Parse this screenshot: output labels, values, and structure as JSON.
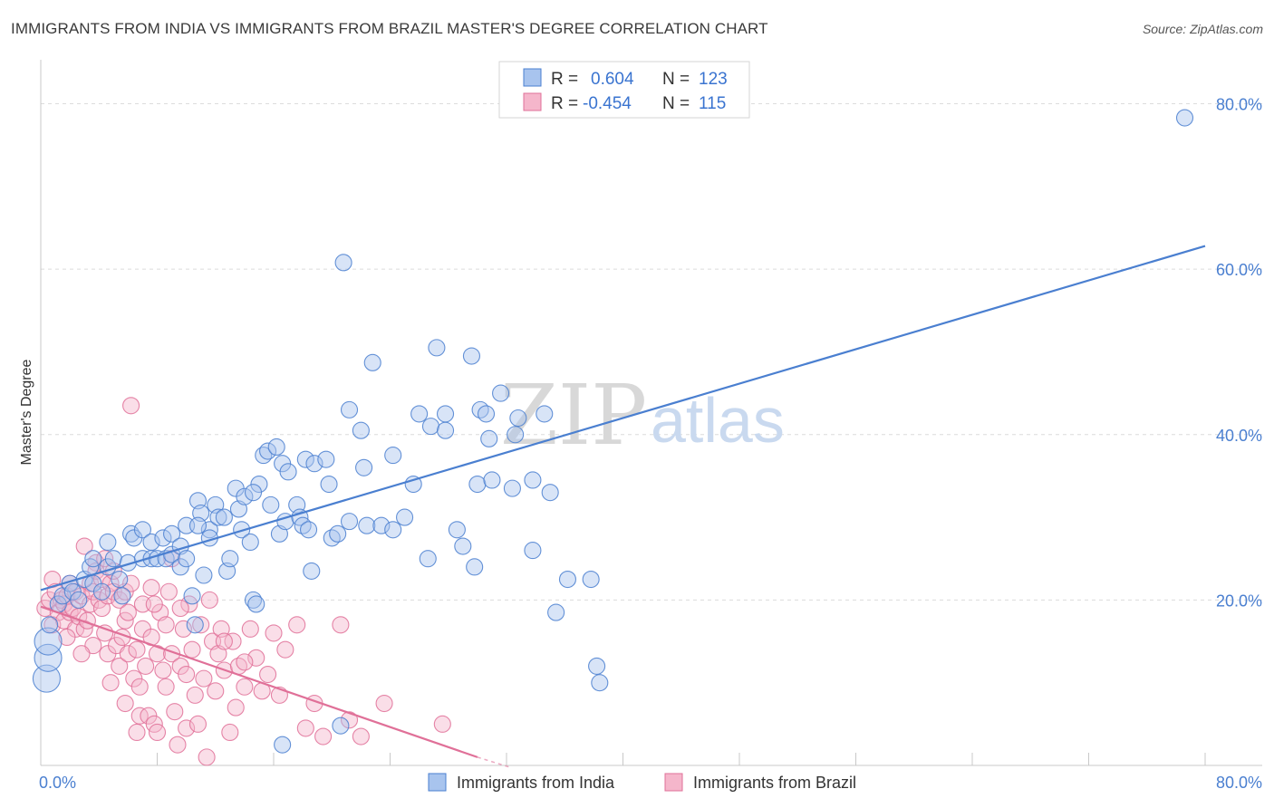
{
  "title": "IMMIGRANTS FROM INDIA VS IMMIGRANTS FROM BRAZIL MASTER'S DEGREE CORRELATION CHART",
  "source": "Source: ZipAtlas.com",
  "watermark": {
    "zip": "ZIP",
    "atlas": "atlas"
  },
  "colors": {
    "india": "#4a7fd0",
    "india_fill": "#a8c4ee",
    "brazil": "#e07098",
    "brazil_fill": "#f5b6cb"
  },
  "legend": {
    "rows": [
      {
        "r_label": "R =",
        "r_value": "0.604",
        "n_label": "N =",
        "n_value": "123"
      },
      {
        "r_label": "R =",
        "r_value": "-0.454",
        "n_label": "N =",
        "n_value": "115"
      }
    ]
  },
  "chart_data": {
    "type": "scatter",
    "xlabel": "",
    "ylabel": "Master's Degree",
    "xlim": [
      0,
      80
    ],
    "ylim": [
      0,
      84
    ],
    "x_tick_labels": [
      "0.0%",
      "80.0%"
    ],
    "y_ticks": [
      {
        "value": 20,
        "label": "20.0%"
      },
      {
        "value": 40,
        "label": "40.0%"
      },
      {
        "value": 60,
        "label": "60.0%"
      },
      {
        "value": 80,
        "label": "80.0%"
      }
    ],
    "grid": true,
    "legend_position": "top-center",
    "series": [
      {
        "name": "Immigrants from India",
        "trend": {
          "x0": 0,
          "y0": 21.2,
          "x1": 80,
          "y1": 62.8
        },
        "points": [
          [
            0.4,
            10.5
          ],
          [
            0.5,
            13.0
          ],
          [
            0.5,
            15.0
          ],
          [
            0.6,
            17.0
          ],
          [
            1.2,
            19.5
          ],
          [
            1.5,
            20.5
          ],
          [
            2.0,
            22.0
          ],
          [
            2.2,
            21.0
          ],
          [
            2.6,
            20.0
          ],
          [
            3.0,
            22.5
          ],
          [
            3.4,
            24.0
          ],
          [
            3.6,
            22.0
          ],
          [
            3.6,
            25.0
          ],
          [
            4.6,
            27.0
          ],
          [
            4.6,
            24.0
          ],
          [
            4.2,
            21.0
          ],
          [
            5.0,
            25.0
          ],
          [
            5.4,
            22.5
          ],
          [
            5.6,
            20.5
          ],
          [
            6.0,
            24.5
          ],
          [
            6.2,
            28.0
          ],
          [
            6.4,
            27.5
          ],
          [
            7.0,
            25.0
          ],
          [
            7.0,
            28.5
          ],
          [
            7.6,
            27.0
          ],
          [
            7.6,
            25.0
          ],
          [
            8.0,
            25.0
          ],
          [
            8.4,
            27.5
          ],
          [
            8.6,
            25.0
          ],
          [
            9.0,
            25.5
          ],
          [
            9.0,
            28.0
          ],
          [
            9.6,
            26.5
          ],
          [
            9.6,
            24.0
          ],
          [
            10.0,
            29.0
          ],
          [
            10.0,
            25.0
          ],
          [
            10.4,
            20.5
          ],
          [
            10.6,
            17.0
          ],
          [
            10.8,
            32.0
          ],
          [
            11.0,
            30.5
          ],
          [
            11.2,
            23.0
          ],
          [
            11.6,
            28.5
          ],
          [
            11.6,
            27.5
          ],
          [
            12.0,
            31.5
          ],
          [
            12.2,
            30.0
          ],
          [
            12.6,
            30.0
          ],
          [
            12.8,
            23.5
          ],
          [
            13.0,
            25.0
          ],
          [
            13.4,
            33.5
          ],
          [
            13.6,
            31.0
          ],
          [
            13.8,
            28.5
          ],
          [
            14.0,
            32.5
          ],
          [
            14.4,
            27.0
          ],
          [
            14.6,
            20.0
          ],
          [
            14.8,
            19.5
          ],
          [
            15.0,
            34.0
          ],
          [
            15.3,
            37.5
          ],
          [
            15.6,
            38.0
          ],
          [
            15.8,
            31.5
          ],
          [
            16.2,
            38.5
          ],
          [
            16.4,
            28.0
          ],
          [
            16.6,
            36.5
          ],
          [
            16.8,
            29.5
          ],
          [
            17.0,
            35.5
          ],
          [
            17.6,
            31.5
          ],
          [
            17.8,
            30.0
          ],
          [
            18.0,
            29.0
          ],
          [
            18.2,
            37.0
          ],
          [
            18.4,
            28.5
          ],
          [
            18.6,
            23.5
          ],
          [
            18.8,
            36.5
          ],
          [
            19.6,
            37.0
          ],
          [
            19.8,
            34.0
          ],
          [
            20.0,
            27.5
          ],
          [
            20.4,
            28.0
          ],
          [
            20.8,
            60.8
          ],
          [
            21.2,
            43.0
          ],
          [
            21.2,
            29.5
          ],
          [
            22.0,
            40.5
          ],
          [
            22.2,
            36.0
          ],
          [
            22.4,
            29.0
          ],
          [
            22.8,
            48.7
          ],
          [
            23.4,
            29.0
          ],
          [
            24.2,
            28.5
          ],
          [
            24.2,
            37.5
          ],
          [
            25.0,
            30.0
          ],
          [
            25.6,
            34.0
          ],
          [
            26.0,
            42.5
          ],
          [
            26.6,
            25.0
          ],
          [
            26.8,
            41.0
          ],
          [
            27.2,
            50.5
          ],
          [
            27.8,
            42.5
          ],
          [
            27.8,
            40.5
          ],
          [
            28.6,
            28.5
          ],
          [
            29.0,
            26.5
          ],
          [
            29.6,
            49.5
          ],
          [
            29.8,
            24.0
          ],
          [
            30.0,
            34.0
          ],
          [
            30.2,
            43.0
          ],
          [
            30.6,
            42.5
          ],
          [
            30.8,
            39.5
          ],
          [
            31.0,
            34.5
          ],
          [
            31.6,
            45.0
          ],
          [
            32.4,
            33.5
          ],
          [
            32.6,
            40.0
          ],
          [
            32.8,
            42.0
          ],
          [
            33.8,
            26.0
          ],
          [
            33.8,
            34.5
          ],
          [
            34.6,
            42.5
          ],
          [
            35.0,
            33.0
          ],
          [
            35.4,
            18.5
          ],
          [
            36.2,
            22.5
          ],
          [
            38.2,
            12.0
          ],
          [
            37.8,
            22.5
          ],
          [
            38.4,
            10.0
          ],
          [
            10.8,
            29.0
          ],
          [
            14.6,
            33.0
          ],
          [
            16.6,
            2.5
          ],
          [
            20.6,
            4.8
          ],
          [
            78.6,
            78.3
          ]
        ]
      },
      {
        "name": "Immigrants from Brazil",
        "trend": {
          "x0": 0,
          "y0": 19.2,
          "x1": 30,
          "y1": 1.0
        },
        "points": [
          [
            0.3,
            19.0
          ],
          [
            0.6,
            20.0
          ],
          [
            0.8,
            22.5
          ],
          [
            0.8,
            17.0
          ],
          [
            1.0,
            21.0
          ],
          [
            1.2,
            18.5
          ],
          [
            1.4,
            20.0
          ],
          [
            1.6,
            19.5
          ],
          [
            1.6,
            17.5
          ],
          [
            1.8,
            20.5
          ],
          [
            2.0,
            22.0
          ],
          [
            2.0,
            18.5
          ],
          [
            2.2,
            19.0
          ],
          [
            2.4,
            16.5
          ],
          [
            2.4,
            21.0
          ],
          [
            2.6,
            18.0
          ],
          [
            2.8,
            20.5
          ],
          [
            3.0,
            26.5
          ],
          [
            3.0,
            16.5
          ],
          [
            3.2,
            17.5
          ],
          [
            3.4,
            22.0
          ],
          [
            3.4,
            19.5
          ],
          [
            3.6,
            21.0
          ],
          [
            3.8,
            24.5
          ],
          [
            3.8,
            23.5
          ],
          [
            4.0,
            20.0
          ],
          [
            4.2,
            22.5
          ],
          [
            4.2,
            19.0
          ],
          [
            4.4,
            25.0
          ],
          [
            4.4,
            16.0
          ],
          [
            4.6,
            20.5
          ],
          [
            4.6,
            13.5
          ],
          [
            4.8,
            22.0
          ],
          [
            5.0,
            23.5
          ],
          [
            5.0,
            21.0
          ],
          [
            5.2,
            14.5
          ],
          [
            5.4,
            20.0
          ],
          [
            5.4,
            12.0
          ],
          [
            5.6,
            15.5
          ],
          [
            5.8,
            21.0
          ],
          [
            5.8,
            17.5
          ],
          [
            6.0,
            18.5
          ],
          [
            6.0,
            13.5
          ],
          [
            6.2,
            22.0
          ],
          [
            6.4,
            10.5
          ],
          [
            6.6,
            14.0
          ],
          [
            6.6,
            4.0
          ],
          [
            6.8,
            6.0
          ],
          [
            7.0,
            19.5
          ],
          [
            7.0,
            16.5
          ],
          [
            7.2,
            12.0
          ],
          [
            7.4,
            6.0
          ],
          [
            7.6,
            21.5
          ],
          [
            7.6,
            15.5
          ],
          [
            7.8,
            5.0
          ],
          [
            8.0,
            13.5
          ],
          [
            8.0,
            4.0
          ],
          [
            8.2,
            18.5
          ],
          [
            8.4,
            11.5
          ],
          [
            8.6,
            17.0
          ],
          [
            8.6,
            9.5
          ],
          [
            8.8,
            21.0
          ],
          [
            9.0,
            25.0
          ],
          [
            9.0,
            13.5
          ],
          [
            9.2,
            6.5
          ],
          [
            9.4,
            2.5
          ],
          [
            9.6,
            12.0
          ],
          [
            9.8,
            16.5
          ],
          [
            10.0,
            11.0
          ],
          [
            10.0,
            4.5
          ],
          [
            10.2,
            19.5
          ],
          [
            10.4,
            14.0
          ],
          [
            10.6,
            8.5
          ],
          [
            10.8,
            5.0
          ],
          [
            11.0,
            17.0
          ],
          [
            11.2,
            10.5
          ],
          [
            11.4,
            1.0
          ],
          [
            11.8,
            15.0
          ],
          [
            12.0,
            9.0
          ],
          [
            12.2,
            13.5
          ],
          [
            12.4,
            16.5
          ],
          [
            12.6,
            11.5
          ],
          [
            13.0,
            4.0
          ],
          [
            13.2,
            15.0
          ],
          [
            13.4,
            7.0
          ],
          [
            13.6,
            12.0
          ],
          [
            14.0,
            9.5
          ],
          [
            14.4,
            16.5
          ],
          [
            14.8,
            13.0
          ],
          [
            15.2,
            9.0
          ],
          [
            15.6,
            11.0
          ],
          [
            16.0,
            16.0
          ],
          [
            16.4,
            8.5
          ],
          [
            16.8,
            14.0
          ],
          [
            17.6,
            17.0
          ],
          [
            18.2,
            4.5
          ],
          [
            18.8,
            7.5
          ],
          [
            19.4,
            3.5
          ],
          [
            20.6,
            17.0
          ],
          [
            21.2,
            5.5
          ],
          [
            22.0,
            3.5
          ],
          [
            23.6,
            7.5
          ],
          [
            27.6,
            5.0
          ],
          [
            6.2,
            43.5
          ],
          [
            7.8,
            19.5
          ],
          [
            9.6,
            19.0
          ],
          [
            11.6,
            20.0
          ],
          [
            12.6,
            15.0
          ],
          [
            14.0,
            12.5
          ],
          [
            3.6,
            14.5
          ],
          [
            1.8,
            15.5
          ],
          [
            2.8,
            13.5
          ],
          [
            4.8,
            10.0
          ],
          [
            5.8,
            7.5
          ],
          [
            6.8,
            9.5
          ]
        ]
      }
    ],
    "bottom_legend": [
      "Immigrants from India",
      "Immigrants from Brazil"
    ]
  }
}
